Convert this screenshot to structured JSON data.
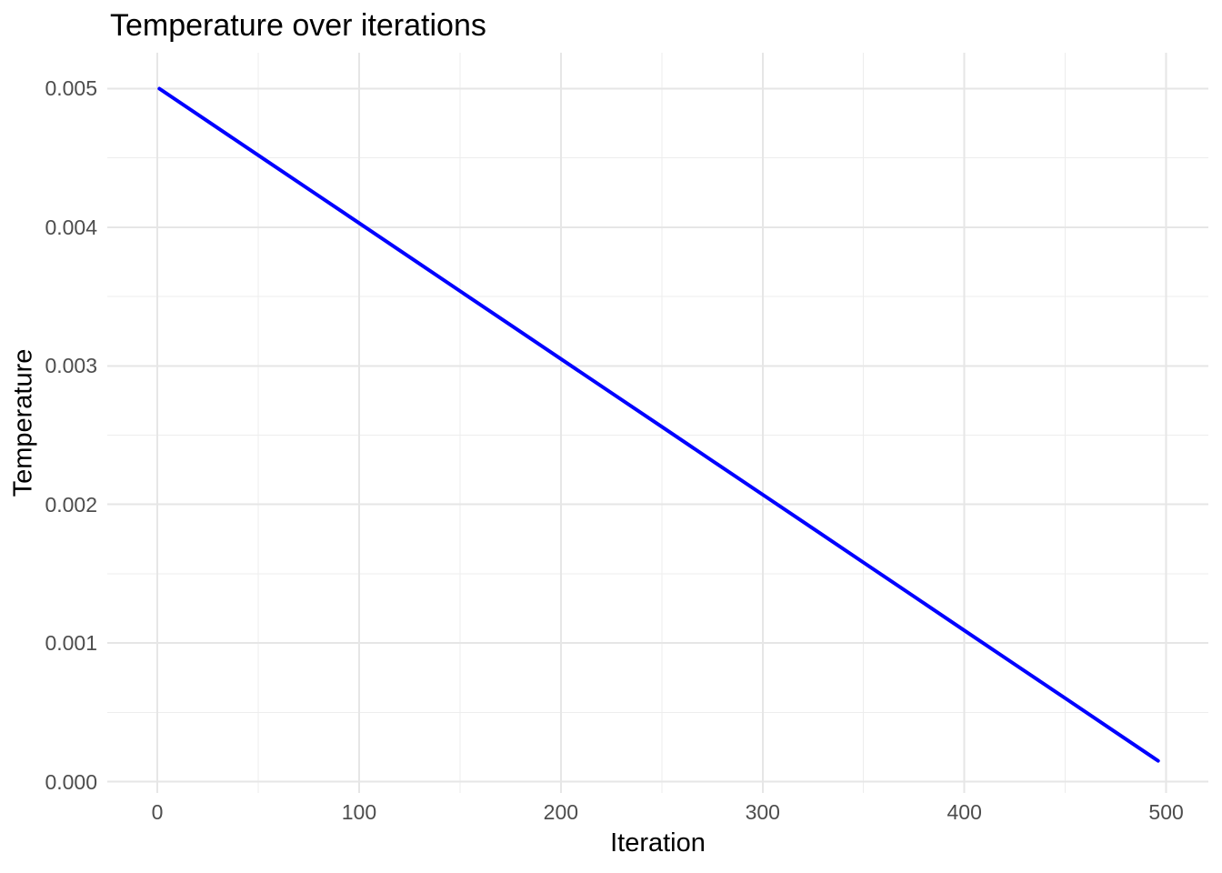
{
  "chart_data": {
    "type": "line",
    "title": "Temperature over iterations",
    "xlabel": "Iteration",
    "ylabel": "Temperature",
    "x_ticks": [
      0,
      100,
      200,
      300,
      400,
      500
    ],
    "x_minor_ticks": [
      50,
      150,
      250,
      350,
      450
    ],
    "y_ticks": [
      0,
      0.001,
      0.002,
      0.003,
      0.004,
      0.005
    ],
    "y_tick_labels": [
      "0.000",
      "0.001",
      "0.002",
      "0.003",
      "0.004",
      "0.005"
    ],
    "y_minor_ticks": [
      0.0005,
      0.0015,
      0.0025,
      0.0035,
      0.0045
    ],
    "x_range": [
      -24.8,
      520.9
    ],
    "y_range": [
      -8.2e-05,
      0.005259
    ],
    "grid": "on",
    "legend": "none",
    "series": [
      {
        "name": "temperature",
        "color": "#0000FF",
        "points": [
          [
            1,
            0.005
          ],
          [
            26,
            0.004755
          ],
          [
            51,
            0.00451
          ],
          [
            76,
            0.004265
          ],
          [
            101,
            0.00402
          ],
          [
            126,
            0.003775
          ],
          [
            151,
            0.00353
          ],
          [
            176,
            0.003285
          ],
          [
            201,
            0.00304
          ],
          [
            226,
            0.002795
          ],
          [
            251,
            0.002551
          ],
          [
            276,
            0.002306
          ],
          [
            301,
            0.002061
          ],
          [
            326,
            0.001816
          ],
          [
            351,
            0.001571
          ],
          [
            376,
            0.001326
          ],
          [
            401,
            0.001081
          ],
          [
            426,
            0.000836
          ],
          [
            451,
            0.000591
          ],
          [
            476,
            0.000346
          ],
          [
            496,
            0.00015
          ]
        ]
      }
    ]
  },
  "colors": {
    "background": "#FFFFFF",
    "line": "#0000FF",
    "grid_major": "#E6E6E6",
    "grid_minor": "#EDEDED",
    "tick_label": "#4D4D4D",
    "title_text": "#000000"
  }
}
